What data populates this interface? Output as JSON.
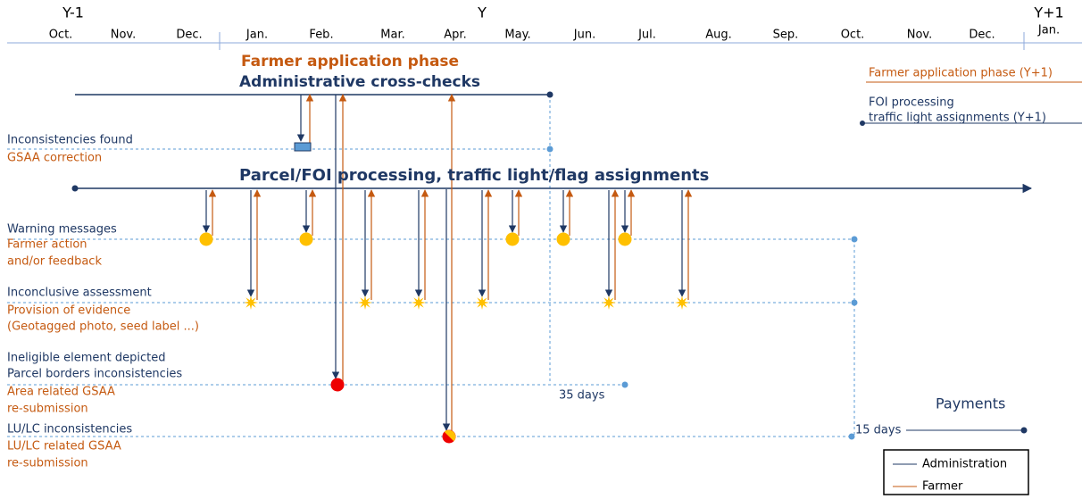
{
  "header": {
    "years": [
      "Y-1",
      "Y",
      "Y+1"
    ],
    "months": [
      "Oct.",
      "Nov.",
      "Dec.",
      "Jan.",
      "Feb.",
      "Mar.",
      "Apr.",
      "May.",
      "Jun.",
      "Jul.",
      "Aug.",
      "Sep.",
      "Oct.",
      "Nov.",
      "Dec.",
      "Jan."
    ]
  },
  "phases": {
    "farmer_application": "Farmer application phase",
    "cross_checks": "Administrative cross-checks",
    "parcel_processing": "Parcel/FOI processing, traffic light/flag assignments",
    "payments": "Payments"
  },
  "next_year": {
    "farmer_application": "Farmer application phase (Y+1)",
    "foi_processing": [
      "FOI processing",
      "traffic light assignments (Y+1)"
    ]
  },
  "rows": [
    {
      "admin": [
        "Inconsistencies found"
      ],
      "farmer": [
        "GSAA correction"
      ]
    },
    {
      "admin": [
        "Warning messages"
      ],
      "farmer": [
        "Farmer action",
        "and/or feedback"
      ]
    },
    {
      "admin": [
        "Inconclusive assessment"
      ],
      "farmer": [
        "Provision of evidence",
        "(Geotagged photo, seed label ...)"
      ]
    },
    {
      "admin": [
        "Ineligible element depicted",
        "Parcel borders inconsistencies"
      ],
      "farmer": [
        "Area related GSAA",
        "re-submission"
      ]
    },
    {
      "admin": [
        "LU/LC inconsistencies"
      ],
      "farmer": [
        "LU/LC related GSAA",
        "re-submission"
      ]
    }
  ],
  "durations": [
    "35 days",
    "15 days"
  ],
  "legend": [
    "Administration",
    "Farmer"
  ]
}
